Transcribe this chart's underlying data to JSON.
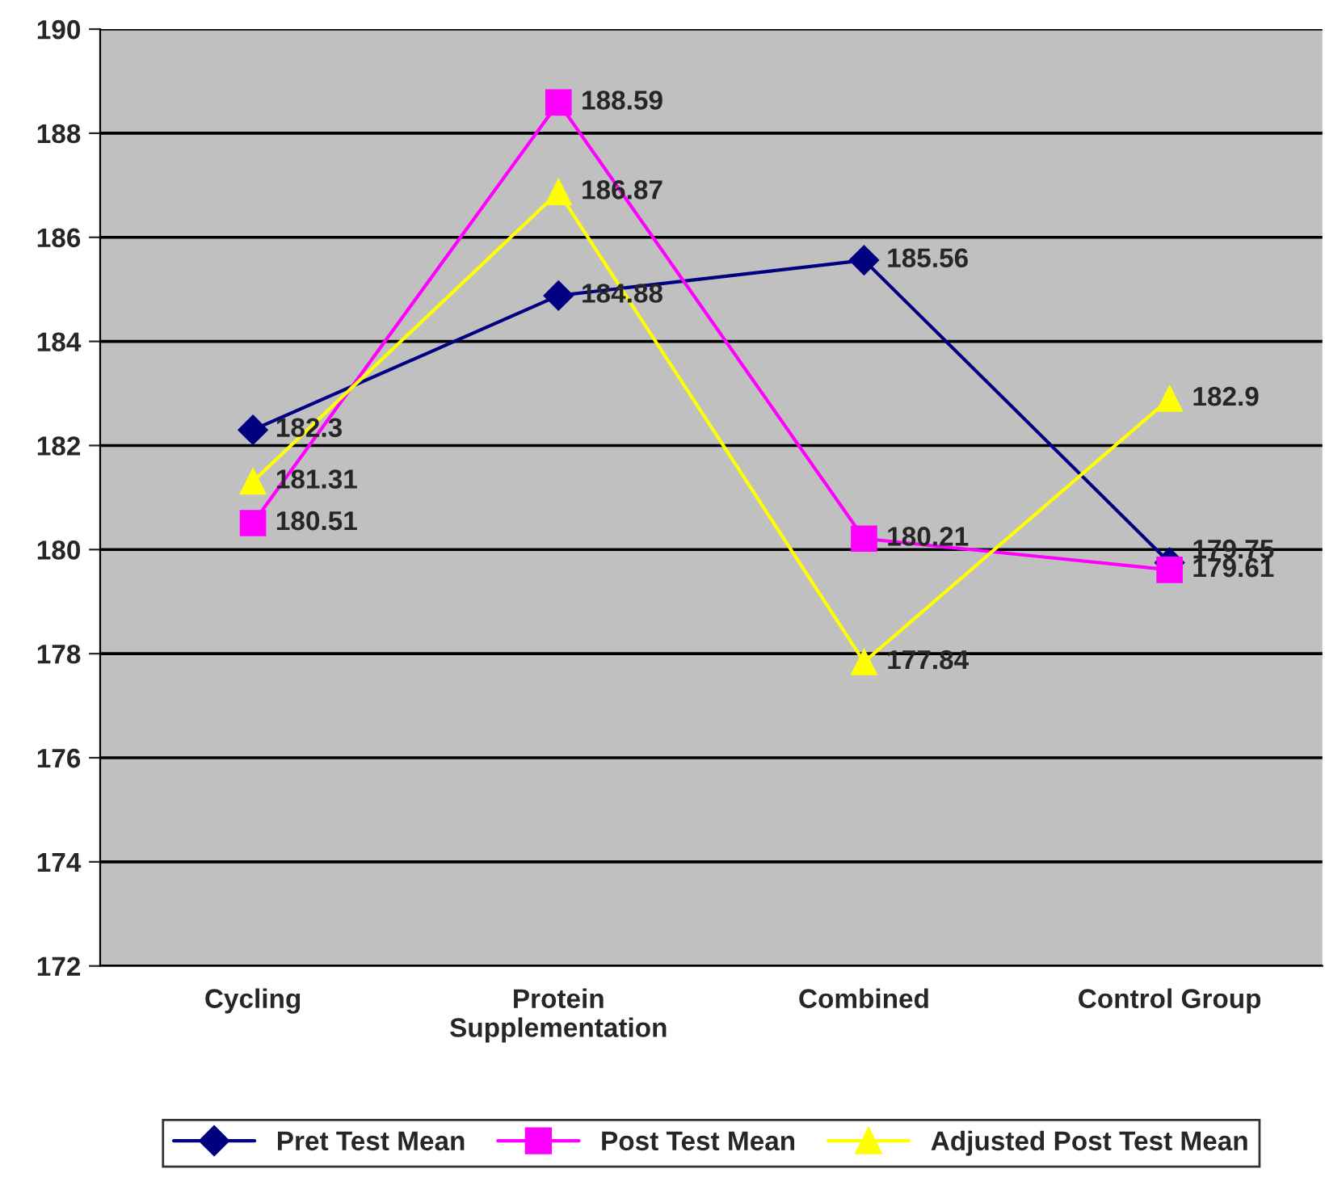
{
  "chart_data": {
    "type": "line",
    "categories": [
      "Cycling",
      "Protein\nSupplementation",
      "Combined",
      "Control Group"
    ],
    "series": [
      {
        "name": "Pret Test Mean",
        "color": "#000080",
        "marker": "diamond",
        "values": [
          182.3,
          184.88,
          185.56,
          179.75
        ]
      },
      {
        "name": "Post Test Mean",
        "color": "#ff00ff",
        "marker": "square",
        "values": [
          180.51,
          188.59,
          180.21,
          179.61
        ]
      },
      {
        "name": "Adjusted Post Test Mean",
        "color": "#ffff00",
        "marker": "triangle",
        "values": [
          181.31,
          186.87,
          177.84,
          182.9
        ]
      }
    ],
    "ylim": [
      172,
      190
    ],
    "yticks": [
      172,
      174,
      176,
      178,
      180,
      182,
      184,
      186,
      188,
      190
    ],
    "grid": "y",
    "legend": "bottom",
    "data_labels": true,
    "line_style": "solid"
  }
}
